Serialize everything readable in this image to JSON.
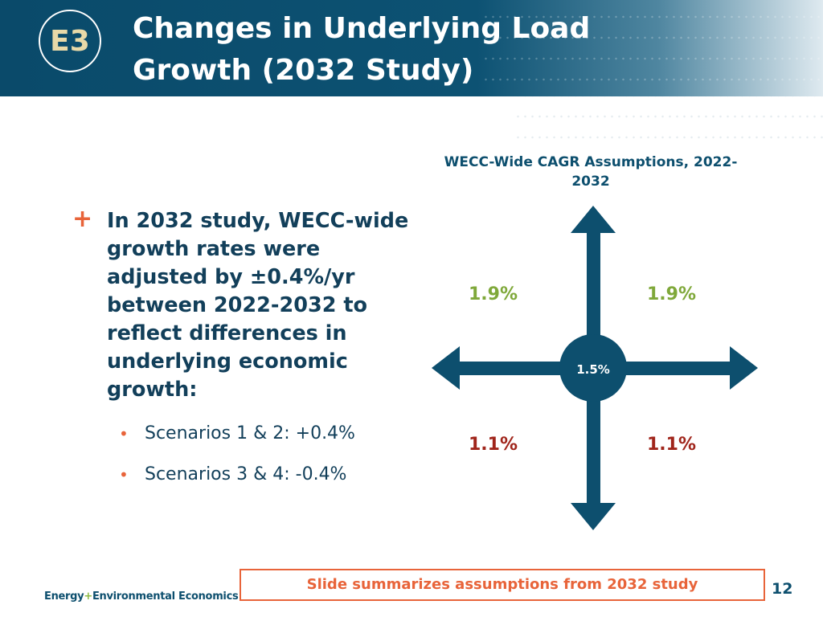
{
  "header": {
    "title_line1": "Changes in Underlying Load",
    "title_line2": "Growth (2032 Study)",
    "logo": "E3"
  },
  "bullet": {
    "marker": "+",
    "text": "In 2032 study, WECC-wide growth rates were adjusted by ±0.4%/yr between 2022-2032 to reflect differences in underlying economic growth:",
    "sub_items": [
      "Scenarios 1 & 2: +0.4%",
      "Scenarios 3 & 4: -0.4%"
    ]
  },
  "diagram": {
    "title": "WECC-Wide CAGR Assumptions, 2022-2032",
    "center": "1.5%",
    "top_left": "1.9%",
    "top_right": "1.9%",
    "bottom_left": "1.1%",
    "bottom_right": "1.1%",
    "colors": {
      "high": "#7fa83a",
      "low": "#a0251b",
      "arrow": "#0d4f6e"
    }
  },
  "footer": {
    "callout": "Slide summarizes assumptions from 2032 study",
    "page": "12",
    "brand_a": "Energy",
    "brand_plus": "+",
    "brand_b": "Environmental Economics"
  }
}
